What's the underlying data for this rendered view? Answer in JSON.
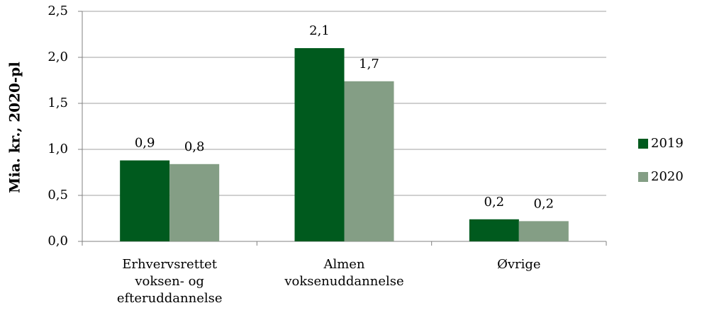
{
  "chart_data": {
    "type": "bar",
    "y_label": "Mia. kr., 2020-pl",
    "categories": [
      "Erhvervsrettet\nvoksen- og\nefteruddannelse",
      "Almen\nvoksenuddannelse",
      "Øvrige"
    ],
    "series": [
      {
        "name": "2019",
        "color": "#005a1e",
        "values": [
          0.88,
          2.1,
          0.24
        ],
        "value_labels": [
          "0,9",
          "2,1",
          "0,2"
        ]
      },
      {
        "name": "2020",
        "color": "#849e85",
        "values": [
          0.84,
          1.74,
          0.22
        ],
        "value_labels": [
          "0,8",
          "1,7",
          "0,2"
        ]
      }
    ],
    "ylim": [
      0,
      2.5
    ],
    "yticks": [
      {
        "value": 0,
        "label": "0,0"
      },
      {
        "value": 0.5,
        "label": "0,5"
      },
      {
        "value": 1,
        "label": "1,0"
      },
      {
        "value": 1.5,
        "label": "1,5"
      },
      {
        "value": 2,
        "label": "2,0"
      },
      {
        "value": 2.5,
        "label": "2,5"
      }
    ],
    "grid": true,
    "legend": "right"
  }
}
